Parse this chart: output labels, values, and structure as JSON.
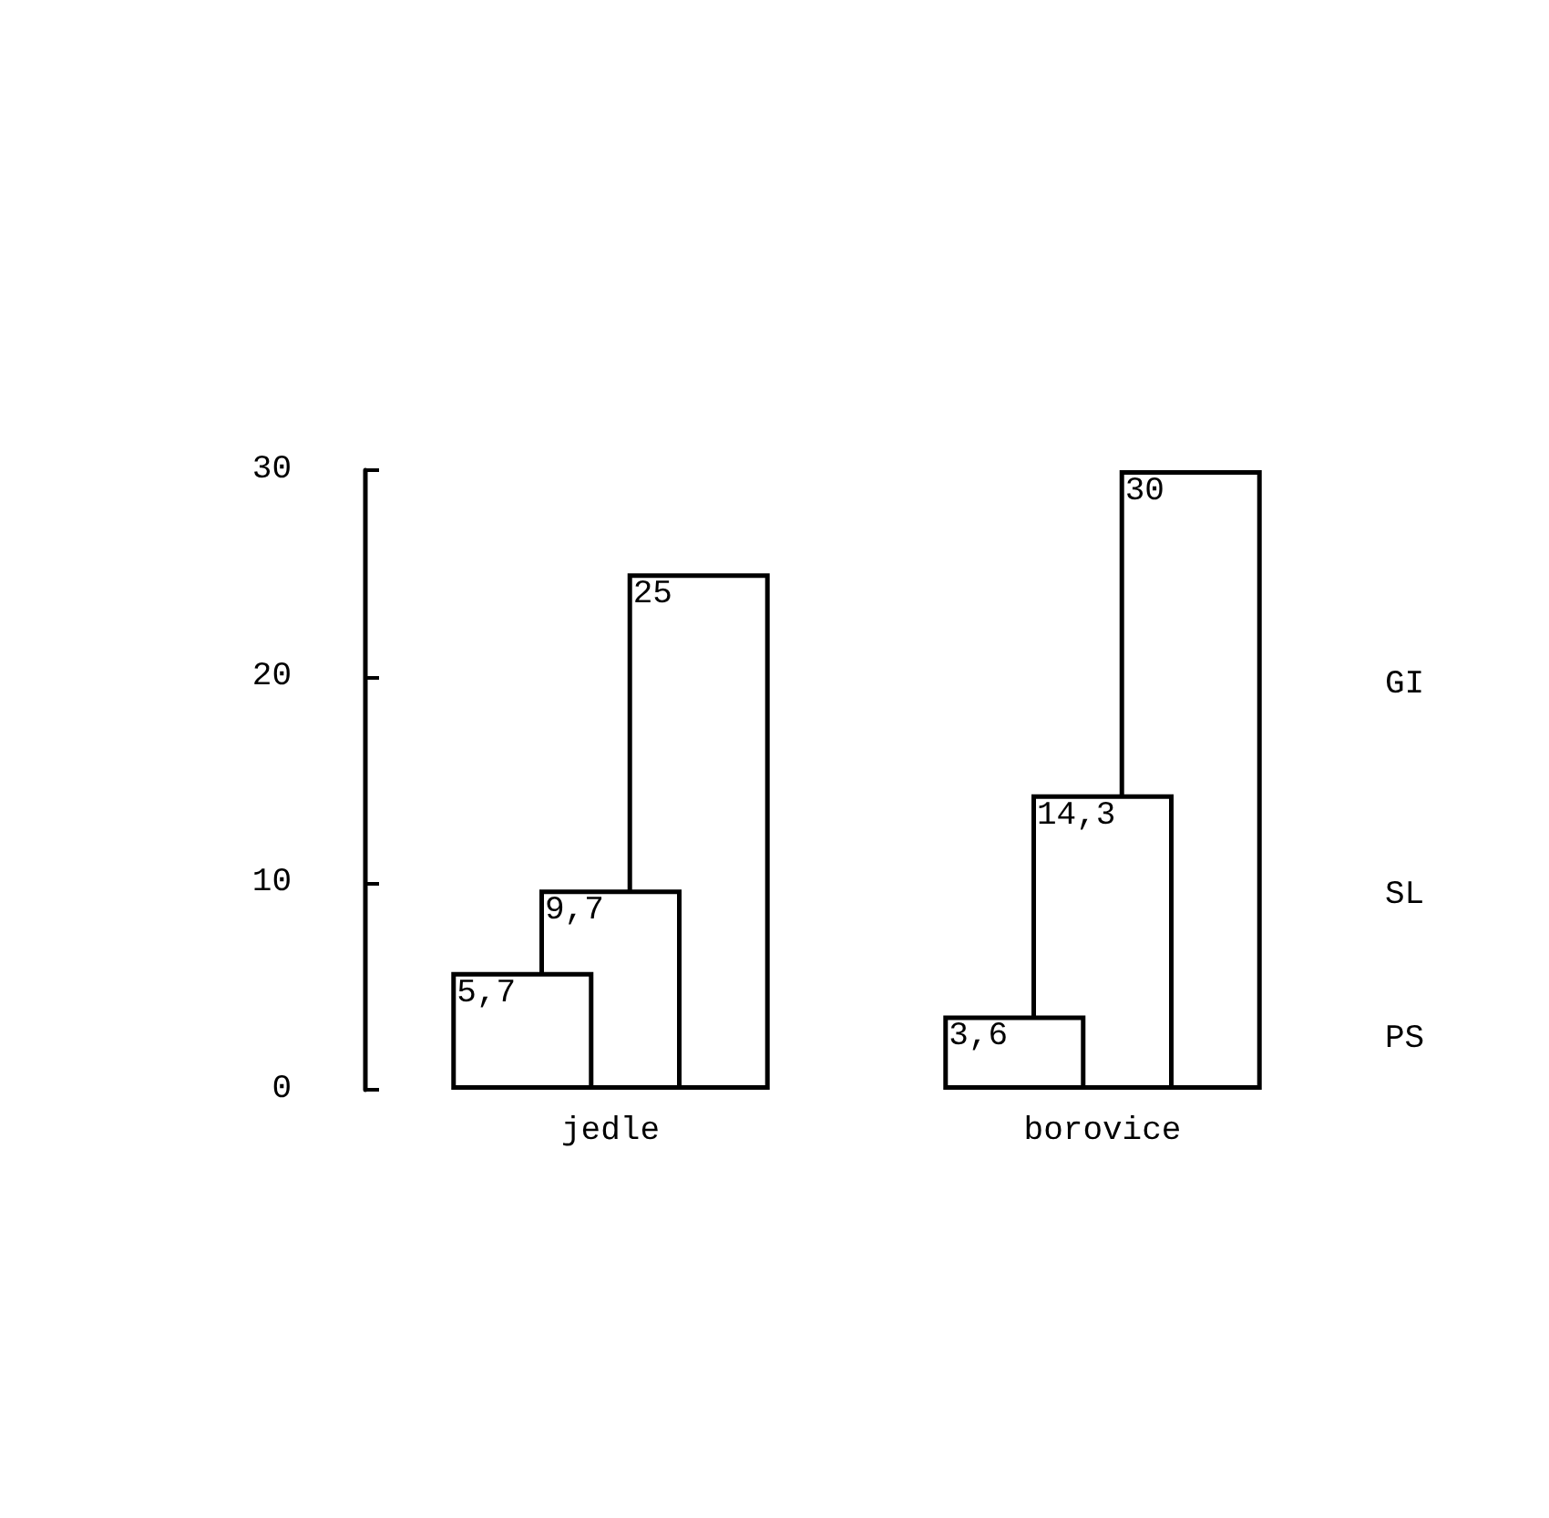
{
  "chart_data": {
    "type": "bar",
    "categories": [
      "jedle",
      "borovice"
    ],
    "series": [
      {
        "name": "PS",
        "color": "#ffffff",
        "values": [
          5.7,
          3.6
        ],
        "value_labels": [
          "5,7",
          "3,6"
        ]
      },
      {
        "name": "SL",
        "color": "#ffffff",
        "values": [
          9.7,
          14.3
        ],
        "value_labels": [
          "9,7",
          "14,3"
        ]
      },
      {
        "name": "GI",
        "color": "#ffffff",
        "values": [
          25,
          30
        ],
        "value_labels": [
          "25",
          "30"
        ]
      }
    ],
    "ylim": [
      0,
      30
    ],
    "yticks": [
      0,
      10,
      20,
      30
    ],
    "grid": false,
    "legend": false
  }
}
